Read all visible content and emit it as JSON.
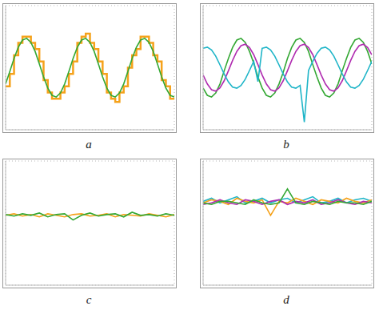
{
  "chart_data": [
    {
      "type": "line",
      "title": "a",
      "grid": true,
      "tick_labels": false,
      "x": [
        0,
        0.25,
        0.5,
        0.75,
        1,
        1.25,
        1.5,
        1.75,
        2,
        2.25,
        2.5,
        2.75,
        3,
        3.25,
        3.5,
        3.75,
        4,
        4.25,
        4.5,
        4.75,
        5,
        5.25,
        5.5,
        5.75,
        6,
        6.25,
        6.5,
        6.75,
        7,
        7.25,
        7.5,
        7.75,
        8,
        8.25,
        8.5,
        8.75,
        9,
        9.25,
        9.5,
        9.75,
        10
      ],
      "xlim": [
        0,
        10
      ],
      "ylim": [
        -4,
        4
      ],
      "xticks": [
        0,
        2,
        4,
        6,
        8,
        10
      ],
      "yticks": [
        -4,
        -2,
        0,
        2,
        4
      ],
      "series": [
        {
          "color": "#f5a21b",
          "line_style": "step",
          "values": [
            -1.2,
            -0.4,
            0.8,
            1.6,
            2.0,
            2.0,
            1.6,
            1.2,
            0.4,
            -0.8,
            -1.6,
            -2.0,
            -2.0,
            -1.6,
            -1.2,
            -0.4,
            0.4,
            1.6,
            2.0,
            2.2,
            1.6,
            1.2,
            0.4,
            -0.4,
            -1.6,
            -2.0,
            -2.2,
            -1.6,
            -1.2,
            0.0,
            0.8,
            1.2,
            2.0,
            2.0,
            1.6,
            0.8,
            0.4,
            -0.8,
            -1.2,
            -2.0,
            -2.0
          ]
        },
        {
          "color": "#34a834",
          "line_style": "solid",
          "values": [
            -1.05,
            -0.25,
            0.59,
            1.31,
            1.78,
            1.89,
            1.63,
            1.05,
            0.25,
            -0.59,
            -1.31,
            -1.78,
            -1.89,
            -1.63,
            -1.05,
            -0.25,
            0.59,
            1.31,
            1.78,
            1.89,
            1.63,
            1.05,
            0.25,
            -0.59,
            -1.31,
            -1.78,
            -1.89,
            -1.63,
            -1.05,
            -0.25,
            0.59,
            1.31,
            1.78,
            1.89,
            1.63,
            1.05,
            0.25,
            -0.59,
            -1.31,
            -1.78,
            -1.89
          ]
        }
      ]
    },
    {
      "type": "line",
      "title": "b",
      "grid": true,
      "tick_labels": false,
      "x": [
        0,
        0.25,
        0.5,
        0.75,
        1,
        1.25,
        1.5,
        1.75,
        2,
        2.25,
        2.5,
        2.75,
        3,
        3.25,
        3.5,
        3.75,
        4,
        4.25,
        4.5,
        4.75,
        5,
        5.25,
        5.5,
        5.75,
        6,
        6.25,
        6.5,
        6.75,
        7,
        7.25,
        7.5,
        7.75,
        8,
        8.25,
        8.5,
        8.75,
        9,
        9.25,
        9.5,
        9.75,
        10
      ],
      "xlim": [
        0,
        10
      ],
      "ylim": [
        -4,
        4
      ],
      "xticks": [
        0,
        2,
        4,
        6,
        8,
        10
      ],
      "yticks": [
        -4,
        -2,
        0,
        2,
        4
      ],
      "series": [
        {
          "color": "#34a834",
          "line_style": "solid",
          "values": [
            -1.31,
            -1.78,
            -1.89,
            -1.63,
            -1.05,
            -0.2,
            0.59,
            1.31,
            1.78,
            1.89,
            1.63,
            1.05,
            0.3,
            -0.59,
            -1.31,
            -1.78,
            -1.89,
            -1.63,
            -1.05,
            -0.3,
            0.59,
            1.31,
            1.78,
            1.89,
            1.63,
            1.05,
            0.2,
            -0.59,
            -1.31,
            -1.78,
            -1.89,
            -1.63,
            -1.05,
            -0.2,
            0.59,
            1.31,
            1.78,
            1.89,
            1.63,
            1.05,
            0.25
          ]
        },
        {
          "color": "#b02cb0",
          "line_style": "solid",
          "values": [
            -0.47,
            -1.05,
            -1.42,
            -1.51,
            -1.3,
            -0.84,
            -0.2,
            0.47,
            1.05,
            1.42,
            1.51,
            1.3,
            0.84,
            0.2,
            -0.47,
            -1.05,
            -1.42,
            -1.51,
            -1.3,
            -0.84,
            -0.2,
            0.47,
            1.05,
            1.42,
            1.51,
            1.3,
            0.84,
            0.2,
            -0.47,
            -1.05,
            -1.42,
            -1.51,
            -1.3,
            -0.84,
            -0.2,
            0.47,
            1.05,
            1.42,
            1.51,
            1.3,
            0.84
          ]
        },
        {
          "color": "#1fb5c8",
          "line_style": "solid",
          "values": [
            1.25,
            1.32,
            1.14,
            0.74,
            0.18,
            -0.41,
            -0.92,
            -1.25,
            -1.32,
            -1.14,
            -0.74,
            -0.18,
            0.41,
            -0.9,
            1.25,
            1.32,
            1.14,
            0.74,
            0.18,
            -0.41,
            -0.92,
            -1.25,
            -1.32,
            -1.14,
            -3.5,
            -0.18,
            0.41,
            0.92,
            1.25,
            1.32,
            1.14,
            0.74,
            0.18,
            -0.41,
            -0.92,
            -1.25,
            -1.32,
            -1.14,
            -0.74,
            -0.18,
            0.41
          ]
        }
      ]
    },
    {
      "type": "line",
      "title": "c",
      "grid": true,
      "tick_labels": false,
      "x": [
        0,
        0.5,
        1,
        1.5,
        2,
        2.5,
        3,
        3.5,
        4,
        4.5,
        5,
        5.5,
        6,
        6.5,
        7,
        7.5,
        8,
        8.5,
        9,
        9.5,
        10
      ],
      "xlim": [
        0,
        10
      ],
      "ylim": [
        -4,
        4
      ],
      "xticks": [
        0,
        2,
        4,
        6,
        8,
        10
      ],
      "yticks": [
        -4,
        -2,
        0,
        2,
        4
      ],
      "series": [
        {
          "color": "#f5a21b",
          "line_style": "solid",
          "values": [
            0.5,
            0.6,
            0.45,
            0.55,
            0.4,
            0.6,
            0.5,
            0.4,
            0.55,
            0.6,
            0.45,
            0.5,
            0.6,
            0.4,
            0.55,
            0.5,
            0.45,
            0.6,
            0.5,
            0.4,
            0.55
          ]
        },
        {
          "color": "#34a834",
          "line_style": "solid",
          "values": [
            0.55,
            0.45,
            0.6,
            0.5,
            0.65,
            0.4,
            0.55,
            0.6,
            0.2,
            0.5,
            0.65,
            0.45,
            0.55,
            0.6,
            0.4,
            0.7,
            0.5,
            0.55,
            0.45,
            0.6,
            0.5
          ]
        }
      ]
    },
    {
      "type": "line",
      "title": "d",
      "grid": true,
      "tick_labels": false,
      "x": [
        0,
        0.5,
        1,
        1.5,
        2,
        2.5,
        3,
        3.5,
        4,
        4.5,
        5,
        5.5,
        6,
        6.5,
        7,
        7.5,
        8,
        8.5,
        9,
        9.5,
        10
      ],
      "xlim": [
        0,
        10
      ],
      "ylim": [
        -4,
        4
      ],
      "xticks": [
        0,
        2,
        4,
        6,
        8,
        10
      ],
      "yticks": [
        -4,
        -2,
        0,
        2,
        4
      ],
      "series": [
        {
          "color": "#1fb5c8",
          "line_style": "solid",
          "values": [
            1.4,
            1.6,
            1.3,
            1.5,
            1.7,
            1.3,
            1.4,
            1.6,
            1.3,
            1.5,
            1.6,
            1.3,
            1.5,
            1.7,
            1.3,
            1.4,
            1.6,
            1.3,
            1.5,
            1.6,
            1.4
          ]
        },
        {
          "color": "#f5a21b",
          "line_style": "solid",
          "values": [
            1.3,
            1.5,
            1.4,
            1.2,
            1.6,
            1.4,
            1.3,
            1.5,
            0.5,
            1.4,
            1.3,
            1.6,
            1.4,
            1.2,
            1.5,
            1.4,
            1.3,
            1.6,
            1.4,
            1.3,
            1.5
          ]
        },
        {
          "color": "#b02cb0",
          "line_style": "solid",
          "values": [
            1.2,
            1.3,
            1.5,
            1.3,
            1.2,
            1.5,
            1.4,
            1.2,
            1.4,
            1.5,
            1.2,
            1.4,
            1.3,
            1.5,
            1.2,
            1.3,
            1.5,
            1.3,
            1.2,
            1.4,
            1.3
          ]
        },
        {
          "color": "#34a834",
          "line_style": "solid",
          "values": [
            1.3,
            1.2,
            1.4,
            1.4,
            1.3,
            1.2,
            1.5,
            1.3,
            1.2,
            1.3,
            2.2,
            1.3,
            1.2,
            1.4,
            1.3,
            1.2,
            1.4,
            1.3,
            1.3,
            1.2,
            1.4
          ]
        }
      ]
    }
  ]
}
